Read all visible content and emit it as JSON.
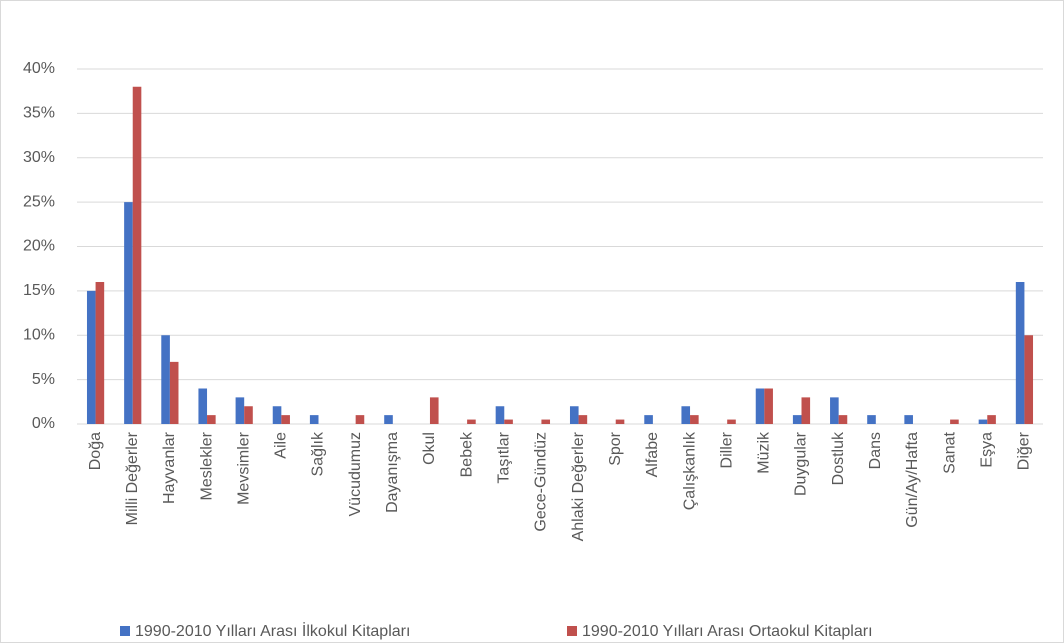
{
  "chart_data": {
    "type": "bar",
    "categories": [
      "Doğa",
      "Milli Değerler",
      "Hayvanlar",
      "Meslekler",
      "Mevsimler",
      "Aile",
      "Sağlık",
      "Vücudumuz",
      "Dayanışma",
      "Okul",
      "Bebek",
      "Taşıtlar",
      "Gece-Gündüz",
      "Ahlaki Değerler",
      "Spor",
      "Alfabe",
      "Çalışkanlık",
      "Diller",
      "Müzik",
      "Duygular",
      "Dostluk",
      "Dans",
      "Gün/Ay/Hafta",
      "Sanat",
      "Eşya",
      "Diğer"
    ],
    "series": [
      {
        "name": "1990-2010 Yılları Arası İlkokul Kitapları",
        "color": "#4472c4",
        "values": [
          15,
          25,
          10,
          4,
          3,
          2,
          1,
          0,
          1,
          0,
          0,
          2,
          0,
          2,
          0,
          1,
          2,
          0,
          4,
          1,
          3,
          1,
          1,
          0,
          0.5,
          16
        ]
      },
      {
        "name": "1990-2010 Yılları Arası Ortaokul Kitapları",
        "color": "#c0504d",
        "values": [
          16,
          38,
          7,
          1,
          2,
          1,
          0,
          1,
          0,
          3,
          0.5,
          0.5,
          0.5,
          1,
          0.5,
          0,
          1,
          0.5,
          4,
          3,
          1,
          0,
          0,
          0.5,
          1,
          10
        ]
      }
    ],
    "ylim": [
      0,
      40
    ],
    "yticks": [
      {
        "value": 0,
        "label": "0%"
      },
      {
        "value": 5,
        "label": "5%"
      },
      {
        "value": 10,
        "label": "10%"
      },
      {
        "value": 15,
        "label": "15%"
      },
      {
        "value": 20,
        "label": "20%"
      },
      {
        "value": 25,
        "label": "25%"
      },
      {
        "value": 30,
        "label": "30%"
      },
      {
        "value": 35,
        "label": "35%"
      },
      {
        "value": 40,
        "label": "40%"
      }
    ],
    "grid": true,
    "legend": "bottom"
  }
}
